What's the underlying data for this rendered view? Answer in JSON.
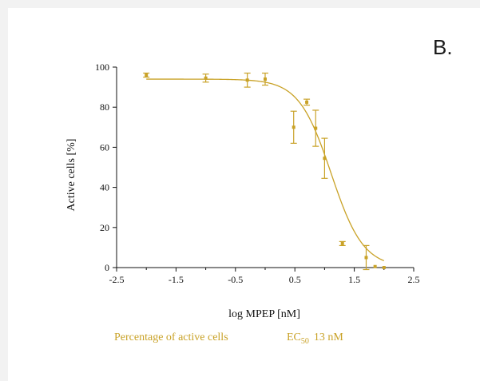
{
  "panel_label": "B.",
  "chart_data": {
    "type": "scatter",
    "title": "",
    "xlabel": "log MPEP [nM]",
    "ylabel": "Active cells [%]",
    "xlim": [
      -2.5,
      2.5
    ],
    "ylim": [
      0,
      100
    ],
    "xticks": [
      -2.5,
      -1.5,
      -0.5,
      0.5,
      1.5,
      2.5
    ],
    "xtick_labels": [
      "-2.5",
      "-1.5",
      "-0.5",
      "0.5",
      "1.5",
      "2.5"
    ],
    "yticks": [
      0,
      20,
      40,
      60,
      80,
      100
    ],
    "ytick_labels": [
      "0",
      "20",
      "40",
      "60",
      "80",
      "100"
    ],
    "grid": false,
    "color": "#c9a227",
    "series": [
      {
        "x": [
          -2.0,
          -1.0,
          -0.3,
          0.0,
          0.48,
          0.7,
          0.85,
          1.0,
          1.3,
          1.7,
          1.85,
          2.0
        ],
        "y": [
          96,
          94.5,
          93.5,
          94,
          70,
          82.5,
          69.5,
          54.5,
          12,
          5,
          0.5,
          0
        ],
        "err": [
          1,
          2,
          3.5,
          3,
          8,
          1.5,
          9,
          10,
          1,
          6,
          0,
          0
        ]
      }
    ],
    "fit_curve": {
      "model": "sigmoidal dose-response",
      "top": 94,
      "bottom": 0,
      "log_ec50": 1.11,
      "hill": -1.6
    },
    "legend": {
      "series_label": "Percentage of active cells",
      "ec_main": "EC",
      "ec_sub": "50",
      "ec_value": "13 nM"
    }
  }
}
